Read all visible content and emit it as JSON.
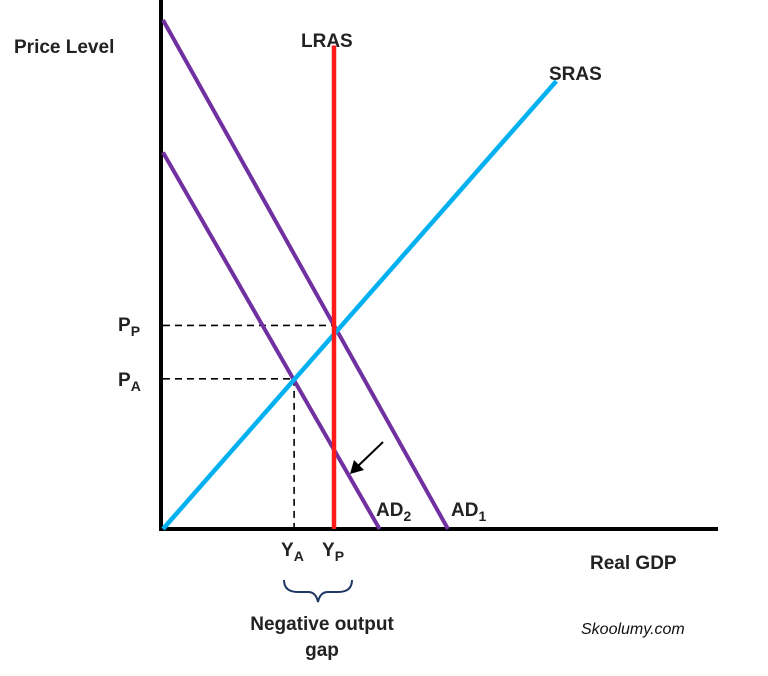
{
  "chart_data": {
    "type": "line",
    "title": "",
    "xlabel": "Real GDP",
    "ylabel": "Price Level",
    "xlim": [
      0,
      10
    ],
    "ylim": [
      0,
      10
    ],
    "grid": false,
    "series": [
      {
        "name": "LRAS",
        "color": "#ff1a1a",
        "x": [
          3,
          3
        ],
        "y": [
          0,
          9.5
        ]
      },
      {
        "name": "SRAS",
        "color": "#00b0f0",
        "x": [
          0,
          6.9
        ],
        "y": [
          0,
          8.8
        ]
      },
      {
        "name": "AD1",
        "color": "#7030a0",
        "x": [
          0,
          5
        ],
        "y": [
          10,
          0
        ]
      },
      {
        "name": "AD2",
        "color": "#7030a0",
        "x": [
          0,
          3.8
        ],
        "y": [
          7.4,
          0
        ]
      }
    ],
    "levels": {
      "PP": {
        "x": 3,
        "y": 4
      },
      "PA": {
        "x": 2.3,
        "y": 2.95
      }
    },
    "labels": {
      "lras": "LRAS",
      "sras": "SRAS",
      "ad1": {
        "main": "AD",
        "sub": "1"
      },
      "ad2": {
        "main": "AD",
        "sub": "2"
      },
      "pp": {
        "main": "P",
        "sub": "P"
      },
      "pa": {
        "main": "P",
        "sub": "A"
      },
      "ya": {
        "main": "Y",
        "sub": "A"
      },
      "yp": {
        "main": "Y",
        "sub": "P"
      },
      "gap_line1": "Negative output",
      "gap_line2": "gap"
    },
    "watermark": "Skoolumy.com"
  }
}
